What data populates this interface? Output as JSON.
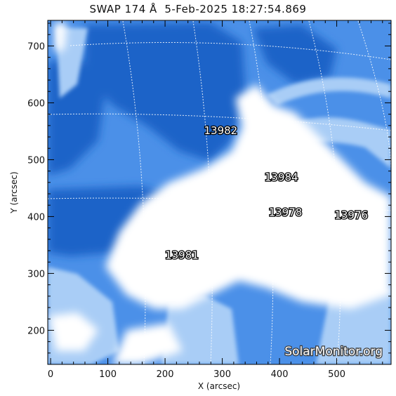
{
  "title": "SWAP 174 Å  5-Feb-2025 18:27:54.869",
  "colors": {
    "dark": "#1a63c8",
    "mid": "#4b90e8",
    "light": "#a9cdf6",
    "white": "#ffffff"
  },
  "axes": {
    "xlabel": "X (arcsec)",
    "ylabel": "Y (arcsec)",
    "xlim": [
      -5,
      595
    ],
    "ylim": [
      140,
      745
    ],
    "xticks": [
      {
        "value": 0,
        "label": "0"
      },
      {
        "value": 100,
        "label": "100"
      },
      {
        "value": 200,
        "label": "200"
      },
      {
        "value": 300,
        "label": "300"
      },
      {
        "value": 400,
        "label": "400"
      },
      {
        "value": 500,
        "label": "500"
      }
    ],
    "yticks": [
      {
        "value": 200,
        "label": "200"
      },
      {
        "value": 300,
        "label": "300"
      },
      {
        "value": 400,
        "label": "400"
      },
      {
        "value": 500,
        "label": "500"
      },
      {
        "value": 600,
        "label": "600"
      },
      {
        "value": 700,
        "label": "700"
      }
    ]
  },
  "regions": [
    {
      "label": "13982",
      "x": 268,
      "y": 545
    },
    {
      "label": "13984",
      "x": 374,
      "y": 463
    },
    {
      "label": "13978",
      "x": 381,
      "y": 401
    },
    {
      "label": "13976",
      "x": 496,
      "y": 396
    },
    {
      "label": "13981",
      "x": 200,
      "y": 326
    }
  ],
  "watermark": "SolarMonitor.org"
}
